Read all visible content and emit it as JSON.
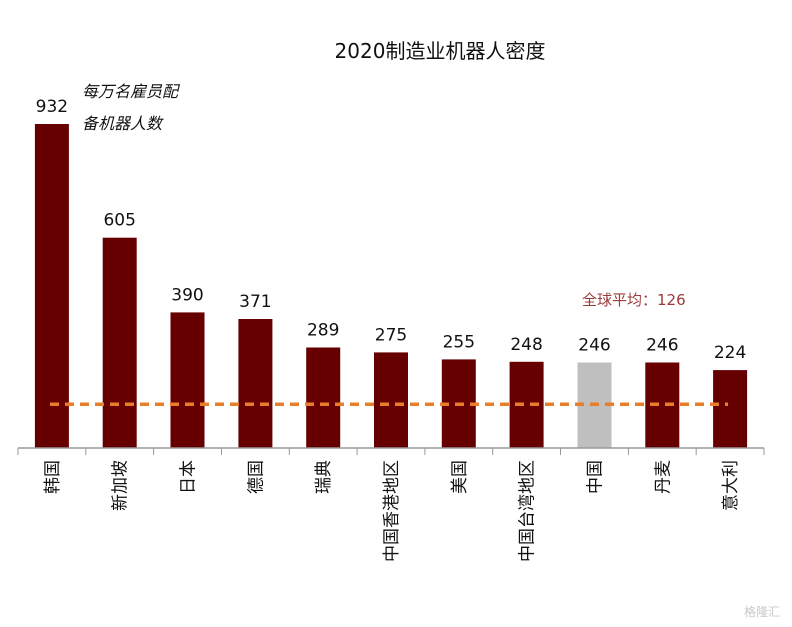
{
  "chart_data": {
    "type": "bar",
    "title": "2020制造业机器人密度",
    "unit_label": [
      "每万名雇员配",
      "备机器人数"
    ],
    "categories": [
      "韩国",
      "新加坡",
      "日本",
      "德国",
      "瑞典",
      "中国香港地区",
      "美国",
      "中国台湾地区",
      "中国",
      "丹麦",
      "意大利"
    ],
    "values": [
      932,
      605,
      390,
      371,
      289,
      275,
      255,
      248,
      246,
      246,
      224
    ],
    "highlight_category": "中国",
    "average": {
      "label": "全球平均：126",
      "value": 126
    },
    "ylim": [
      0,
      932
    ],
    "grid": false,
    "legend": "none"
  },
  "colors": {
    "bar": "#660000",
    "highlight": "#bfbfbf",
    "average_line": "#e87d2c",
    "axis": "#999999"
  },
  "watermark": "格隆汇"
}
